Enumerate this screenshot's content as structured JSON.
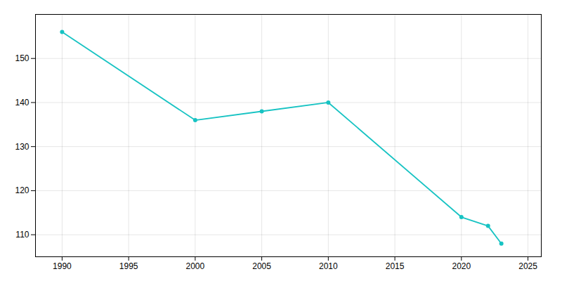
{
  "chart_data": {
    "type": "line",
    "x": [
      1990,
      2000,
      2005,
      2010,
      2020,
      2022,
      2023
    ],
    "values": [
      156,
      136,
      138,
      140,
      114,
      112,
      108
    ],
    "color": "#17C3C3",
    "marker": "o",
    "xlim": [
      1988,
      2026
    ],
    "ylim": [
      105,
      160
    ],
    "xticks": [
      1990,
      1995,
      2000,
      2005,
      2010,
      2015,
      2020,
      2025
    ],
    "yticks": [
      110,
      120,
      130,
      140,
      150
    ],
    "grid": true
  }
}
